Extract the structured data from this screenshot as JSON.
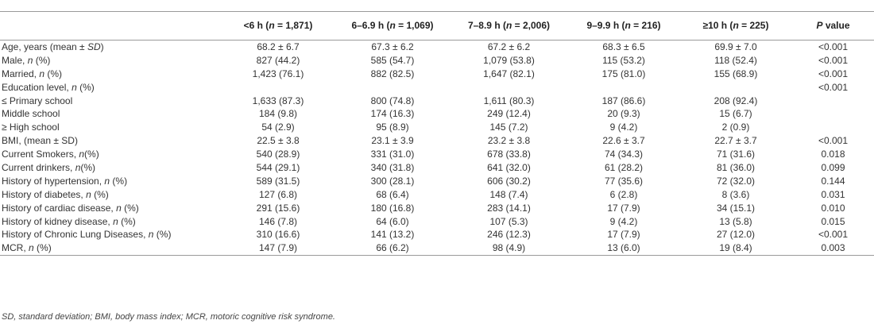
{
  "table": {
    "columns": [
      {
        "label": "",
        "prefix": "",
        "n_label": "",
        "suffix": ""
      },
      {
        "prefix": "<6 h (",
        "n_label": "n",
        "suffix": " = 1,871)"
      },
      {
        "prefix": "6–6.9 h (",
        "n_label": "n",
        "suffix": " = 1,069)"
      },
      {
        "prefix": "7–8.9 h (",
        "n_label": "n",
        "suffix": " = 2,006)"
      },
      {
        "prefix": "9–9.9 h (",
        "n_label": "n",
        "suffix": " = 216)"
      },
      {
        "prefix": "≥10 h (",
        "n_label": "n",
        "suffix": " = 225)"
      },
      {
        "prefix": "",
        "n_label": "P",
        "suffix": " value"
      }
    ],
    "rows": [
      {
        "label": "Age, years (mean ± ",
        "label_italic": "SD",
        "label_tail": ")",
        "cells": [
          "68.2 ± 6.7",
          "67.3 ± 6.2",
          "67.2 ± 6.2",
          "68.3 ± 6.5",
          "69.9 ± 7.0",
          "<0.001"
        ]
      },
      {
        "label": "Male, ",
        "label_italic": "n",
        "label_tail": " (%)",
        "cells": [
          "827 (44.2)",
          "585 (54.7)",
          "1,079 (53.8)",
          "115 (53.2)",
          "118 (52.4)",
          "<0.001"
        ]
      },
      {
        "label": "Married, ",
        "label_italic": "n",
        "label_tail": " (%)",
        "cells": [
          "1,423 (76.1)",
          "882 (82.5)",
          "1,647 (82.1)",
          "175 (81.0)",
          "155 (68.9)",
          "<0.001"
        ]
      },
      {
        "label": "Education level, ",
        "label_italic": "n",
        "label_tail": " (%)",
        "cells": [
          "",
          "",
          "",
          "",
          "",
          "<0.001"
        ]
      },
      {
        "label": "≤ Primary school",
        "label_italic": "",
        "label_tail": "",
        "cells": [
          "1,633 (87.3)",
          "800 (74.8)",
          "1,611 (80.3)",
          "187 (86.6)",
          "208 (92.4)",
          ""
        ]
      },
      {
        "label": "Middle school",
        "label_italic": "",
        "label_tail": "",
        "cells": [
          "184 (9.8)",
          "174 (16.3)",
          "249 (12.4)",
          "20 (9.3)",
          "15 (6.7)",
          ""
        ]
      },
      {
        "label": "≥ High school",
        "label_italic": "",
        "label_tail": "",
        "cells": [
          "54 (2.9)",
          "95 (8.9)",
          "145 (7.2)",
          "9 (4.2)",
          "2 (0.9)",
          ""
        ]
      },
      {
        "label": "BMI, (mean ± SD)",
        "label_italic": "",
        "label_tail": "",
        "cells": [
          "22.5 ± 3.8",
          "23.1 ± 3.9",
          "23.2 ± 3.8",
          "22.6 ± 3.7",
          "22.7 ± 3.7",
          "<0.001"
        ]
      },
      {
        "label": "Current Smokers, ",
        "label_italic": "n",
        "label_tail": "(%)",
        "cells": [
          "540 (28.9)",
          "331 (31.0)",
          "678 (33.8)",
          "74 (34.3)",
          "71 (31.6)",
          "0.018"
        ]
      },
      {
        "label": "Current drinkers, ",
        "label_italic": "n",
        "label_tail": "(%)",
        "cells": [
          "544 (29.1)",
          "340 (31.8)",
          "641 (32.0)",
          "61 (28.2)",
          "81 (36.0)",
          "0.099"
        ]
      },
      {
        "label": "History of hypertension, ",
        "label_italic": "n",
        "label_tail": " (%)",
        "cells": [
          "589 (31.5)",
          "300 (28.1)",
          "606 (30.2)",
          "77 (35.6)",
          "72 (32.0)",
          "0.144"
        ]
      },
      {
        "label": "History of diabetes, ",
        "label_italic": "n",
        "label_tail": " (%)",
        "cells": [
          "127 (6.8)",
          "68 (6.4)",
          "148 (7.4)",
          "6 (2.8)",
          "8 (3.6)",
          "0.031"
        ]
      },
      {
        "label": "History of cardiac disease, ",
        "label_italic": "n",
        "label_tail": " (%)",
        "cells": [
          "291 (15.6)",
          "180 (16.8)",
          "283 (14.1)",
          "17 (7.9)",
          "34 (15.1)",
          "0.010"
        ]
      },
      {
        "label": "History of kidney disease, ",
        "label_italic": "n",
        "label_tail": " (%)",
        "cells": [
          "146 (7.8)",
          "64 (6.0)",
          "107 (5.3)",
          "9 (4.2)",
          "13 (5.8)",
          "0.015"
        ]
      },
      {
        "label": "History of Chronic Lung Diseases, ",
        "label_italic": "n",
        "label_tail": " (%)",
        "cells": [
          "310 (16.6)",
          "141 (13.2)",
          "246 (12.3)",
          "17 (7.9)",
          "27 (12.0)",
          "<0.001"
        ]
      },
      {
        "label": "MCR, ",
        "label_italic": "n",
        "label_tail": " (%)",
        "cells": [
          "147 (7.9)",
          "66 (6.2)",
          "98 (4.9)",
          "13 (6.0)",
          "19 (8.4)",
          "0.003"
        ]
      }
    ]
  },
  "footnote": "SD, standard deviation; BMI, body mass index; MCR, motoric cognitive risk syndrome."
}
